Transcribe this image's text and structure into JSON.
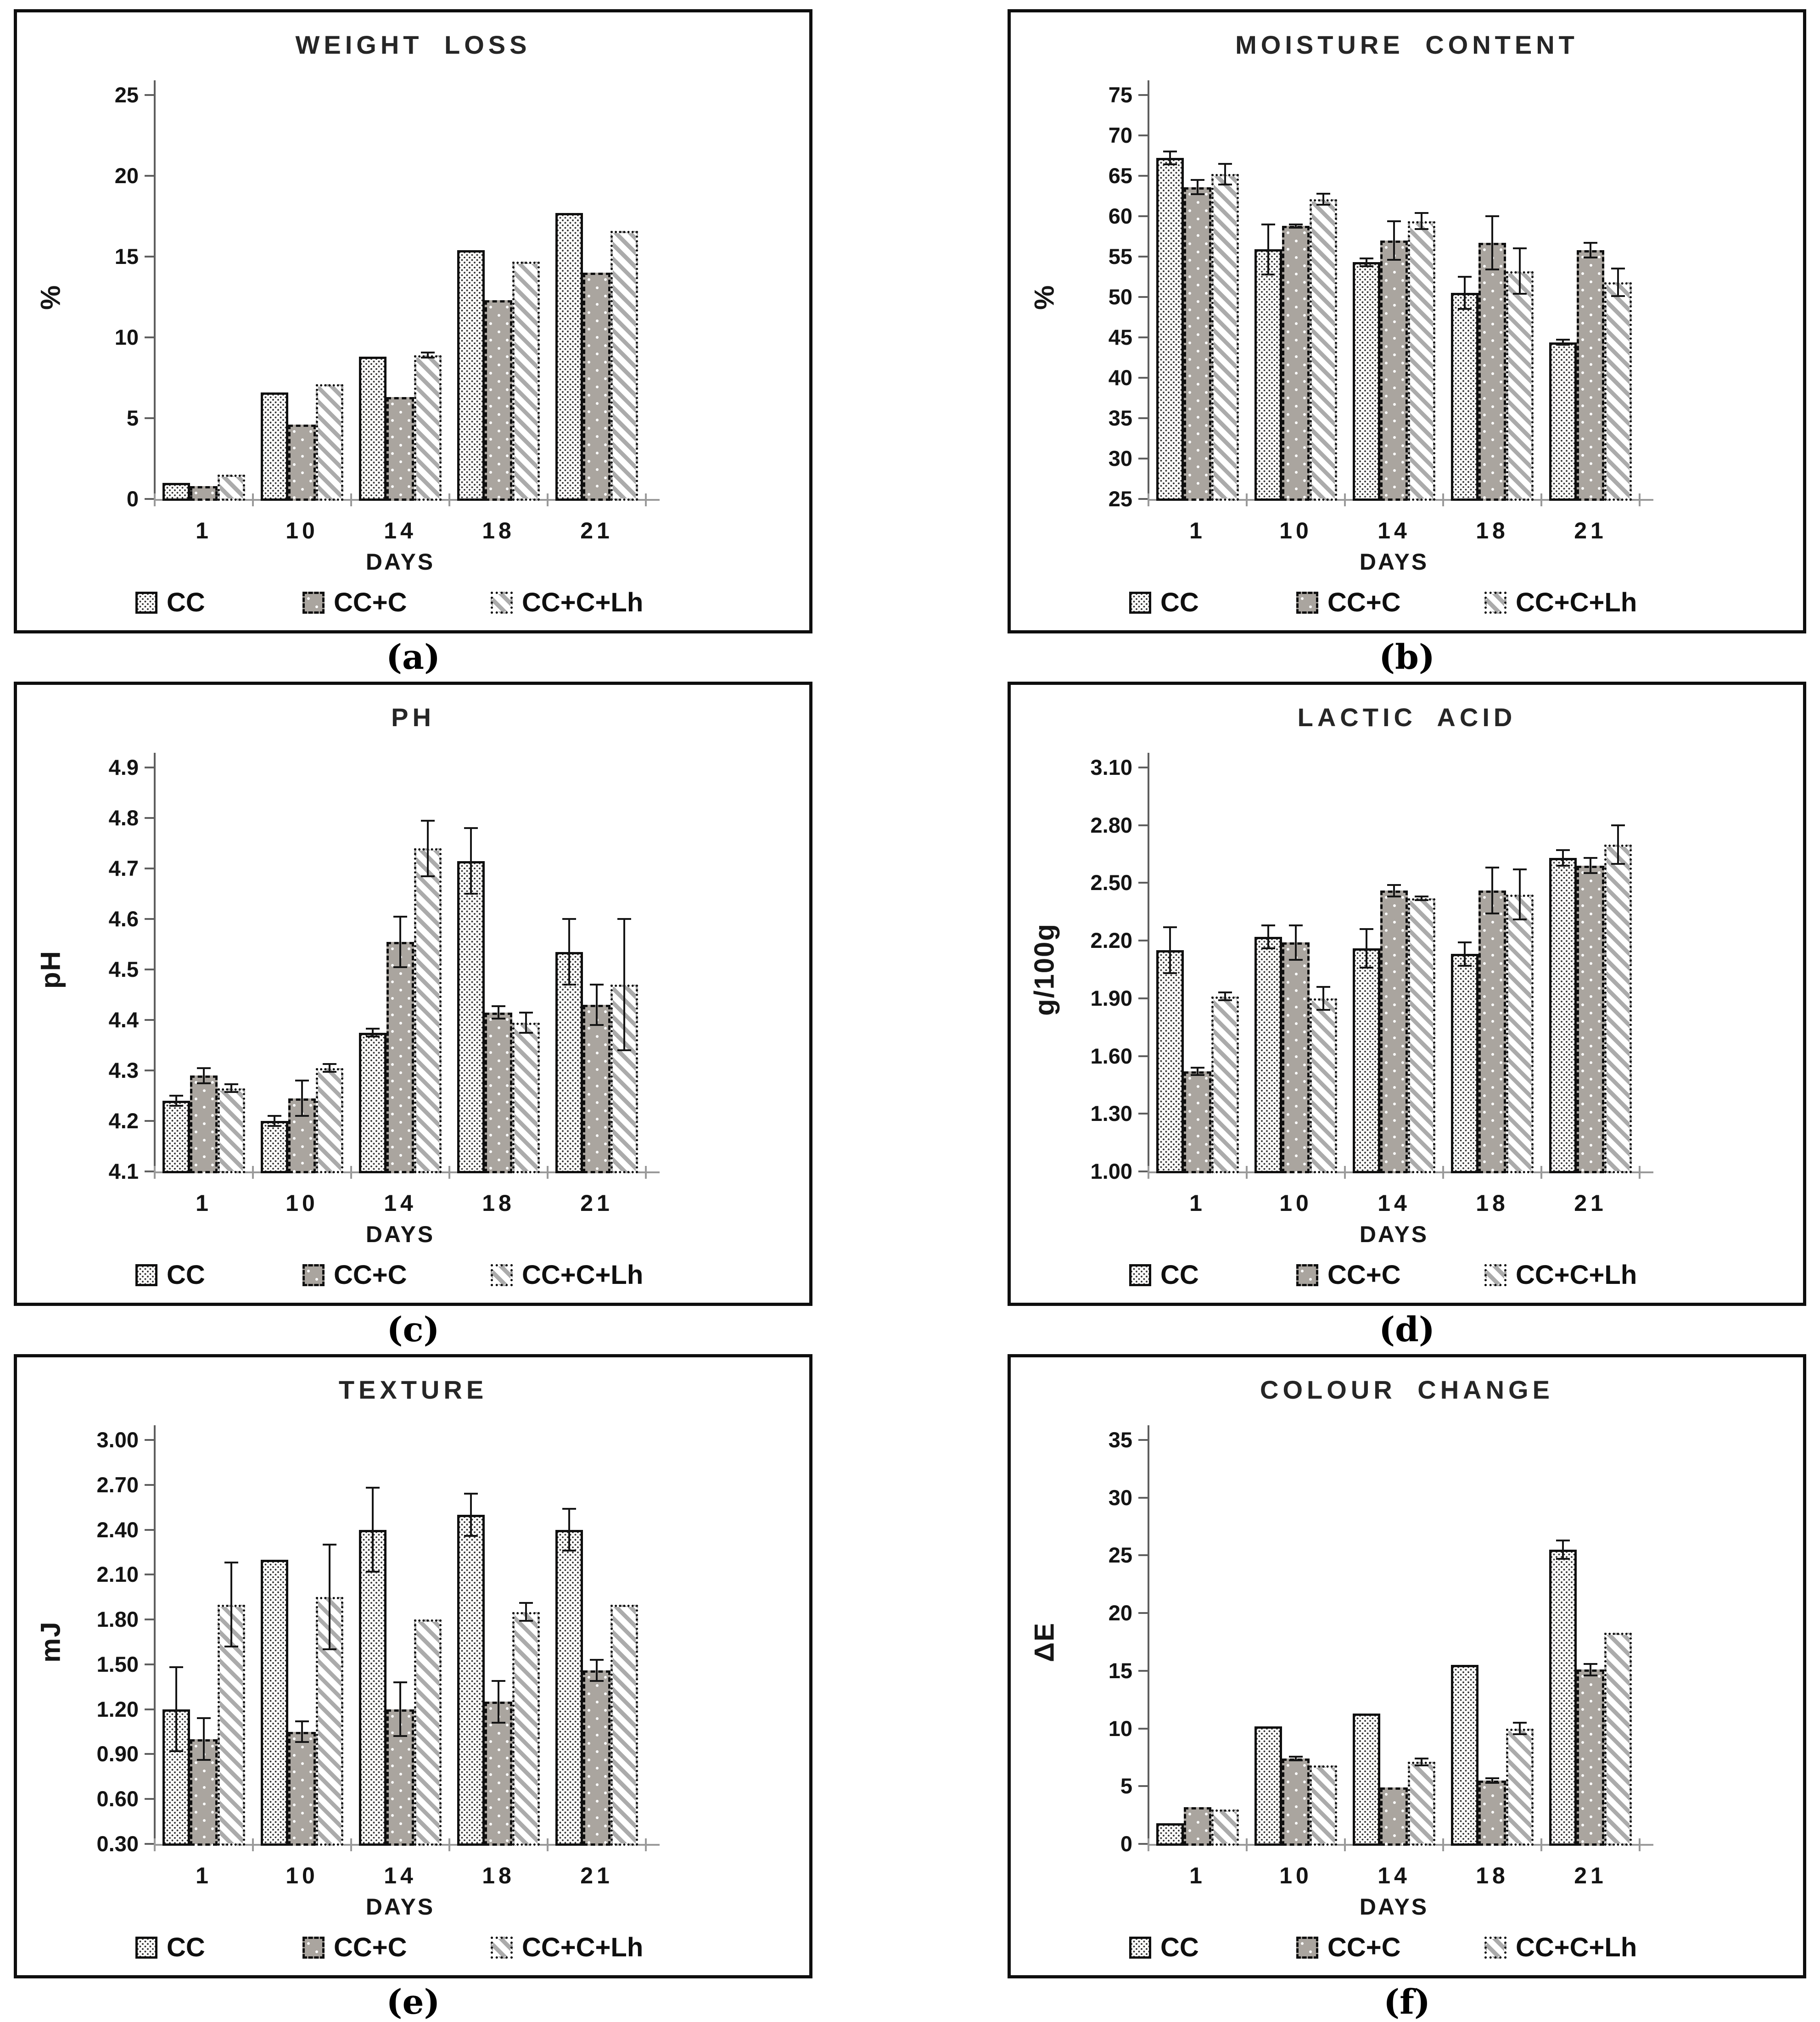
{
  "colors": {
    "cc_pattern_dot": "#2f2f2f",
    "ccc_fill_gray": "#aaa59f",
    "stripe_gray": "#ababab",
    "axis_gray": "#9a9a9a",
    "text_black": "#141414"
  },
  "legend_names": [
    "CC",
    "CC+C",
    "CC+C+Lh"
  ],
  "charts": [
    {
      "caption": "(a)",
      "title": "WEIGHT LOSS",
      "ylabel": "%",
      "xlabel": "DAYS",
      "type": "bar",
      "categories": [
        "1",
        "10",
        "14",
        "18",
        "21"
      ],
      "ymin": 0,
      "ymax": 25,
      "ytick_values": [
        0,
        5,
        10,
        15,
        20,
        25
      ],
      "ytick_labels": [
        "0",
        "5",
        "10",
        "15",
        "20",
        "25"
      ],
      "series": [
        {
          "name": "CC",
          "values": [
            1.0,
            6.6,
            8.8,
            15.4,
            17.7
          ],
          "errors": [
            0,
            0,
            0,
            0,
            0
          ]
        },
        {
          "name": "CC+C",
          "values": [
            0.8,
            4.6,
            6.3,
            12.3,
            14.0
          ],
          "errors": [
            0,
            0,
            0,
            0,
            0
          ]
        },
        {
          "name": "CC+C+Lh",
          "values": [
            1.5,
            7.1,
            8.9,
            14.7,
            16.6
          ],
          "errors": [
            0,
            0,
            0.15,
            0,
            0
          ]
        }
      ]
    },
    {
      "caption": "(b)",
      "title": "MOISTURE CONTENT",
      "ylabel": "%",
      "xlabel": "DAYS",
      "type": "bar",
      "categories": [
        "1",
        "10",
        "14",
        "18",
        "21"
      ],
      "ymin": 25,
      "ymax": 75,
      "ytick_values": [
        25,
        30,
        35,
        40,
        45,
        50,
        55,
        60,
        65,
        70,
        75
      ],
      "ytick_labels": [
        "25",
        "30",
        "35",
        "40",
        "45",
        "50",
        "55",
        "60",
        "65",
        "70",
        "75"
      ],
      "series": [
        {
          "name": "CC",
          "values": [
            67.2,
            55.9,
            54.3,
            50.5,
            44.4
          ],
          "errors": [
            0.8,
            3.1,
            0.5,
            2.0,
            0.3
          ]
        },
        {
          "name": "CC+C",
          "values": [
            63.6,
            58.8,
            57.0,
            56.7,
            55.8
          ],
          "errors": [
            0.9,
            0.2,
            2.4,
            3.3,
            0.9
          ]
        },
        {
          "name": "CC+C+Lh",
          "values": [
            65.2,
            62.1,
            59.4,
            53.2,
            51.8
          ],
          "errors": [
            1.3,
            0.7,
            1.0,
            2.8,
            1.7
          ]
        }
      ]
    },
    {
      "caption": "(c)",
      "title": "PH",
      "ylabel": "pH",
      "xlabel": "DAYS",
      "type": "bar",
      "categories": [
        "1",
        "10",
        "14",
        "18",
        "21"
      ],
      "ymin": 4.1,
      "ymax": 4.9,
      "ytick_values": [
        4.1,
        4.2,
        4.3,
        4.4,
        4.5,
        4.6,
        4.7,
        4.8,
        4.9
      ],
      "ytick_labels": [
        "4.1",
        "4.2",
        "4.3",
        "4.4",
        "4.5",
        "4.6",
        "4.7",
        "4.8",
        "4.9"
      ],
      "series": [
        {
          "name": "CC",
          "values": [
            4.24,
            4.2,
            4.375,
            4.715,
            4.535
          ],
          "errors": [
            0.01,
            0.01,
            0.008,
            0.065,
            0.065
          ]
        },
        {
          "name": "CC+C",
          "values": [
            4.29,
            4.245,
            4.555,
            4.415,
            4.43
          ],
          "errors": [
            0.015,
            0.035,
            0.05,
            0.012,
            0.04
          ]
        },
        {
          "name": "CC+C+Lh",
          "values": [
            4.265,
            4.305,
            4.74,
            4.395,
            4.47
          ],
          "errors": [
            0.008,
            0.008,
            0.055,
            0.02,
            0.13
          ]
        }
      ]
    },
    {
      "caption": "(d)",
      "title": "LACTIC ACID",
      "ylabel": "g/100g",
      "xlabel": "DAYS",
      "type": "bar",
      "categories": [
        "1",
        "10",
        "14",
        "18",
        "21"
      ],
      "ymin": 1.0,
      "ymax": 3.1,
      "ytick_values": [
        1.0,
        1.3,
        1.6,
        1.9,
        2.2,
        2.5,
        2.8,
        3.1
      ],
      "ytick_labels": [
        "1.00",
        "1.30",
        "1.60",
        "1.90",
        "2.20",
        "2.50",
        "2.80",
        "3.10"
      ],
      "series": [
        {
          "name": "CC",
          "values": [
            2.15,
            2.22,
            2.16,
            2.13,
            2.63
          ],
          "errors": [
            0.12,
            0.06,
            0.1,
            0.06,
            0.04
          ]
        },
        {
          "name": "CC+C",
          "values": [
            1.52,
            2.19,
            2.46,
            2.46,
            2.59
          ],
          "errors": [
            0.02,
            0.09,
            0.03,
            0.12,
            0.04
          ]
        },
        {
          "name": "CC+C+Lh",
          "values": [
            1.91,
            1.9,
            2.42,
            2.44,
            2.7
          ],
          "errors": [
            0.02,
            0.06,
            0.01,
            0.13,
            0.1
          ]
        }
      ]
    },
    {
      "caption": "(e)",
      "title": "TEXTURE",
      "ylabel": "mJ",
      "xlabel": "DAYS",
      "type": "bar",
      "categories": [
        "1",
        "10",
        "14",
        "18",
        "21"
      ],
      "ymin": 0.3,
      "ymax": 3.0,
      "ytick_values": [
        0.3,
        0.6,
        0.9,
        1.2,
        1.5,
        1.8,
        2.1,
        2.4,
        2.7,
        3.0
      ],
      "ytick_labels": [
        "0.30",
        "0.60",
        "0.90",
        "1.20",
        "1.50",
        "1.80",
        "2.10",
        "2.40",
        "2.70",
        "3.00"
      ],
      "series": [
        {
          "name": "CC",
          "values": [
            1.2,
            2.2,
            2.4,
            2.5,
            2.4
          ],
          "errors": [
            0.28,
            0,
            0.28,
            0.14,
            0.14
          ]
        },
        {
          "name": "CC+C",
          "values": [
            1.0,
            1.05,
            1.2,
            1.25,
            1.46
          ],
          "errors": [
            0.14,
            0.07,
            0.18,
            0.14,
            0.07
          ]
        },
        {
          "name": "CC+C+Lh",
          "values": [
            1.9,
            1.95,
            1.8,
            1.85,
            1.9
          ],
          "errors": [
            0.28,
            0.35,
            0,
            0.06,
            0
          ]
        }
      ]
    },
    {
      "caption": "(f)",
      "title": "COLOUR CHANGE",
      "ylabel": "ΔE",
      "xlabel": "DAYS",
      "type": "bar",
      "categories": [
        "1",
        "10",
        "14",
        "18",
        "21"
      ],
      "ymin": 0,
      "ymax": 35,
      "ytick_values": [
        0,
        5,
        10,
        15,
        20,
        25,
        30,
        35
      ],
      "ytick_labels": [
        "0",
        "5",
        "10",
        "15",
        "20",
        "25",
        "30",
        "35"
      ],
      "series": [
        {
          "name": "CC",
          "values": [
            1.8,
            10.2,
            11.3,
            15.5,
            25.5
          ],
          "errors": [
            0,
            0,
            0,
            0,
            0.8
          ]
        },
        {
          "name": "CC+C",
          "values": [
            3.2,
            7.4,
            4.9,
            5.5,
            15.1
          ],
          "errors": [
            0,
            0.15,
            0,
            0.2,
            0.5
          ]
        },
        {
          "name": "CC+C+Lh",
          "values": [
            3.0,
            6.8,
            7.1,
            10.0,
            18.3
          ],
          "errors": [
            0,
            0,
            0.3,
            0.5,
            0
          ]
        }
      ]
    }
  ],
  "chart_data": [
    {
      "type": "bar",
      "title": "WEIGHT LOSS",
      "xlabel": "DAYS",
      "ylabel": "%",
      "categories": [
        "1",
        "10",
        "14",
        "18",
        "21"
      ],
      "ylim": [
        0,
        25
      ],
      "grid": false,
      "legend_position": "bottom",
      "series": [
        {
          "name": "CC",
          "values": [
            1.0,
            6.6,
            8.8,
            15.4,
            17.7
          ]
        },
        {
          "name": "CC+C",
          "values": [
            0.8,
            4.6,
            6.3,
            12.3,
            14.0
          ]
        },
        {
          "name": "CC+C+Lh",
          "values": [
            1.5,
            7.1,
            8.9,
            14.7,
            16.6
          ]
        }
      ]
    },
    {
      "type": "bar",
      "title": "MOISTURE CONTENT",
      "xlabel": "DAYS",
      "ylabel": "%",
      "categories": [
        "1",
        "10",
        "14",
        "18",
        "21"
      ],
      "ylim": [
        25,
        75
      ],
      "grid": false,
      "legend_position": "bottom",
      "series": [
        {
          "name": "CC",
          "values": [
            67.2,
            55.9,
            54.3,
            50.5,
            44.4
          ]
        },
        {
          "name": "CC+C",
          "values": [
            63.6,
            58.8,
            57.0,
            56.7,
            55.8
          ]
        },
        {
          "name": "CC+C+Lh",
          "values": [
            65.2,
            62.1,
            59.4,
            53.2,
            51.8
          ]
        }
      ]
    },
    {
      "type": "bar",
      "title": "PH",
      "xlabel": "DAYS",
      "ylabel": "pH",
      "categories": [
        "1",
        "10",
        "14",
        "18",
        "21"
      ],
      "ylim": [
        4.1,
        4.9
      ],
      "grid": false,
      "legend_position": "bottom",
      "series": [
        {
          "name": "CC",
          "values": [
            4.24,
            4.2,
            4.375,
            4.715,
            4.535
          ]
        },
        {
          "name": "CC+C",
          "values": [
            4.29,
            4.245,
            4.555,
            4.415,
            4.43
          ]
        },
        {
          "name": "CC+C+Lh",
          "values": [
            4.265,
            4.305,
            4.74,
            4.395,
            4.47
          ]
        }
      ]
    },
    {
      "type": "bar",
      "title": "LACTIC ACID",
      "xlabel": "DAYS",
      "ylabel": "g/100g",
      "categories": [
        "1",
        "10",
        "14",
        "18",
        "21"
      ],
      "ylim": [
        1.0,
        3.1
      ],
      "grid": false,
      "legend_position": "bottom",
      "series": [
        {
          "name": "CC",
          "values": [
            2.15,
            2.22,
            2.16,
            2.13,
            2.63
          ]
        },
        {
          "name": "CC+C",
          "values": [
            1.52,
            2.19,
            2.46,
            2.46,
            2.59
          ]
        },
        {
          "name": "CC+C+Lh",
          "values": [
            1.91,
            1.9,
            2.42,
            2.44,
            2.7
          ]
        }
      ]
    },
    {
      "type": "bar",
      "title": "TEXTURE",
      "xlabel": "DAYS",
      "ylabel": "mJ",
      "categories": [
        "1",
        "10",
        "14",
        "18",
        "21"
      ],
      "ylim": [
        0.3,
        3.0
      ],
      "grid": false,
      "legend_position": "bottom",
      "series": [
        {
          "name": "CC",
          "values": [
            1.2,
            2.2,
            2.4,
            2.5,
            2.4
          ]
        },
        {
          "name": "CC+C",
          "values": [
            1.0,
            1.05,
            1.2,
            1.25,
            1.46
          ]
        },
        {
          "name": "CC+C+Lh",
          "values": [
            1.9,
            1.95,
            1.8,
            1.85,
            1.9
          ]
        }
      ]
    },
    {
      "type": "bar",
      "title": "COLOUR CHANGE",
      "xlabel": "DAYS",
      "ylabel": "ΔE",
      "categories": [
        "1",
        "10",
        "14",
        "18",
        "21"
      ],
      "ylim": [
        0,
        35
      ],
      "grid": false,
      "legend_position": "bottom",
      "series": [
        {
          "name": "CC",
          "values": [
            1.8,
            10.2,
            11.3,
            15.5,
            25.5
          ]
        },
        {
          "name": "CC+C",
          "values": [
            3.2,
            7.4,
            4.9,
            5.5,
            15.1
          ]
        },
        {
          "name": "CC+C+Lh",
          "values": [
            3.0,
            6.8,
            7.1,
            10.0,
            18.3
          ]
        }
      ]
    }
  ]
}
